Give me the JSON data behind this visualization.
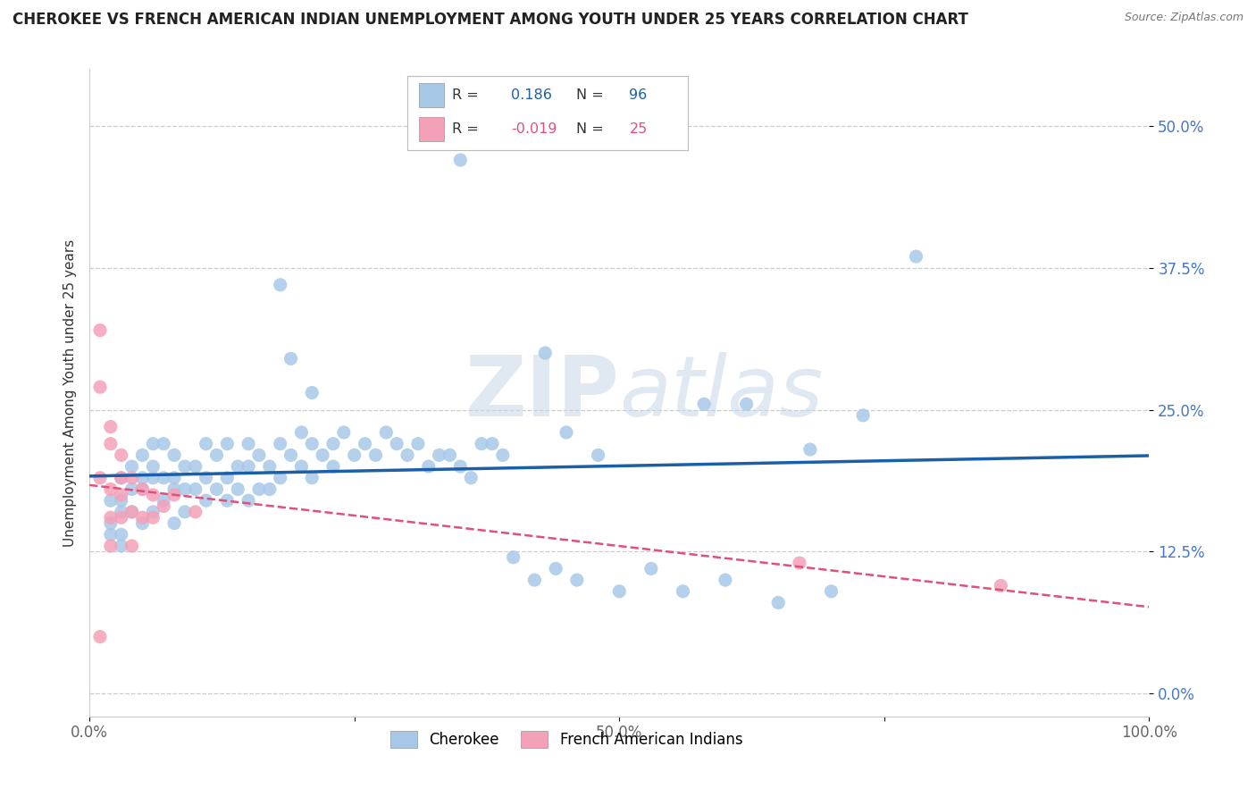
{
  "title": "CHEROKEE VS FRENCH AMERICAN INDIAN UNEMPLOYMENT AMONG YOUTH UNDER 25 YEARS CORRELATION CHART",
  "source": "Source: ZipAtlas.com",
  "ylabel": "Unemployment Among Youth under 25 years",
  "xlim": [
    0,
    1.0
  ],
  "ylim": [
    -0.02,
    0.55
  ],
  "xticks": [
    0.0,
    0.25,
    0.5,
    0.75,
    1.0
  ],
  "xticklabels": [
    "0.0%",
    "",
    "50.0%",
    "",
    "100.0%"
  ],
  "yticks": [
    0.0,
    0.125,
    0.25,
    0.375,
    0.5
  ],
  "yticklabels": [
    "0.0%",
    "12.5%",
    "25.0%",
    "37.5%",
    "50.0%"
  ],
  "cherokee_R": 0.186,
  "cherokee_N": 96,
  "french_R": -0.019,
  "french_N": 25,
  "cherokee_color": "#a8c8e8",
  "cherokee_line_color": "#1a5fa8",
  "french_color": "#f4a0b8",
  "french_line_color": "#e0507a",
  "background_color": "#ffffff",
  "grid_color": "#cccccc",
  "watermark": "ZIPatlas",
  "title_fontsize": 12,
  "label_fontsize": 11,
  "tick_fontsize": 12,
  "cherokee_x": [
    0.35,
    0.18,
    0.19,
    0.21,
    0.58,
    0.78,
    0.73,
    0.68,
    0.43,
    0.62,
    0.02,
    0.02,
    0.02,
    0.03,
    0.03,
    0.03,
    0.03,
    0.03,
    0.04,
    0.04,
    0.04,
    0.05,
    0.05,
    0.05,
    0.05,
    0.06,
    0.06,
    0.06,
    0.06,
    0.07,
    0.07,
    0.07,
    0.08,
    0.08,
    0.08,
    0.08,
    0.09,
    0.09,
    0.09,
    0.1,
    0.1,
    0.11,
    0.11,
    0.11,
    0.12,
    0.12,
    0.13,
    0.13,
    0.13,
    0.14,
    0.14,
    0.15,
    0.15,
    0.15,
    0.16,
    0.16,
    0.17,
    0.17,
    0.18,
    0.18,
    0.19,
    0.2,
    0.2,
    0.21,
    0.21,
    0.22,
    0.23,
    0.23,
    0.24,
    0.25,
    0.26,
    0.27,
    0.28,
    0.29,
    0.3,
    0.31,
    0.33,
    0.35,
    0.37,
    0.39,
    0.4,
    0.42,
    0.44,
    0.46,
    0.5,
    0.53,
    0.56,
    0.6,
    0.65,
    0.7,
    0.45,
    0.48,
    0.36,
    0.38,
    0.32,
    0.34
  ],
  "cherokee_y": [
    0.47,
    0.36,
    0.295,
    0.265,
    0.255,
    0.385,
    0.245,
    0.215,
    0.3,
    0.255,
    0.17,
    0.15,
    0.14,
    0.19,
    0.17,
    0.16,
    0.14,
    0.13,
    0.2,
    0.18,
    0.16,
    0.21,
    0.19,
    0.18,
    0.15,
    0.22,
    0.2,
    0.19,
    0.16,
    0.22,
    0.19,
    0.17,
    0.21,
    0.19,
    0.18,
    0.15,
    0.2,
    0.18,
    0.16,
    0.2,
    0.18,
    0.22,
    0.19,
    0.17,
    0.21,
    0.18,
    0.22,
    0.19,
    0.17,
    0.2,
    0.18,
    0.22,
    0.2,
    0.17,
    0.21,
    0.18,
    0.2,
    0.18,
    0.22,
    0.19,
    0.21,
    0.23,
    0.2,
    0.22,
    0.19,
    0.21,
    0.22,
    0.2,
    0.23,
    0.21,
    0.22,
    0.21,
    0.23,
    0.22,
    0.21,
    0.22,
    0.21,
    0.2,
    0.22,
    0.21,
    0.12,
    0.1,
    0.11,
    0.1,
    0.09,
    0.11,
    0.09,
    0.1,
    0.08,
    0.09,
    0.23,
    0.21,
    0.19,
    0.22,
    0.2,
    0.21
  ],
  "french_x": [
    0.01,
    0.01,
    0.01,
    0.01,
    0.02,
    0.02,
    0.02,
    0.02,
    0.02,
    0.03,
    0.03,
    0.03,
    0.03,
    0.04,
    0.04,
    0.04,
    0.05,
    0.05,
    0.06,
    0.06,
    0.07,
    0.08,
    0.1,
    0.67,
    0.86
  ],
  "french_y": [
    0.32,
    0.27,
    0.19,
    0.05,
    0.235,
    0.22,
    0.18,
    0.155,
    0.13,
    0.21,
    0.19,
    0.175,
    0.155,
    0.19,
    0.16,
    0.13,
    0.18,
    0.155,
    0.175,
    0.155,
    0.165,
    0.175,
    0.16,
    0.115,
    0.095
  ]
}
